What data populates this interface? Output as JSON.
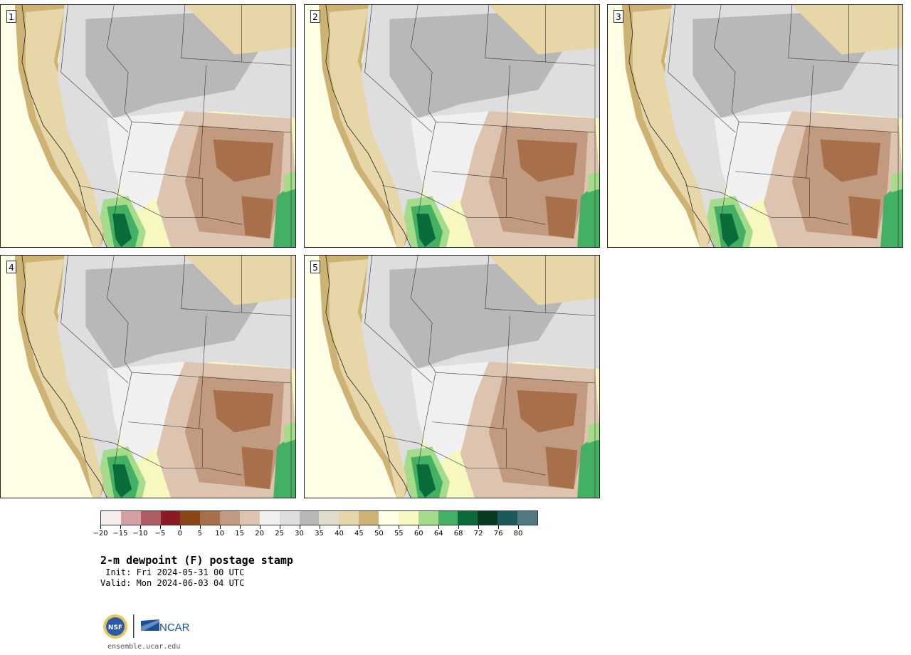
{
  "panels": [
    {
      "label": "1"
    },
    {
      "label": "2"
    },
    {
      "label": "3"
    },
    {
      "label": "4"
    },
    {
      "label": "5"
    }
  ],
  "colorbar": {
    "colors": [
      "#f5ecec",
      "#d4a0a4",
      "#b05c64",
      "#8c1a24",
      "#8a4614",
      "#a8704a",
      "#c29a80",
      "#ddc4b0",
      "#f0f0f0",
      "#dedede",
      "#b8b8b8",
      "#e0dccc",
      "#e6d6a8",
      "#cdb274",
      "#fefee6",
      "#f6f8c0",
      "#a4dc8c",
      "#44b064",
      "#0a6c38",
      "#083c20",
      "#1a5a5a",
      "#4e7a80"
    ],
    "ticks": [
      "−20",
      "−15",
      "−10",
      "−5",
      "0",
      "5",
      "10",
      "15",
      "20",
      "25",
      "30",
      "35",
      "40",
      "45",
      "50",
      "55",
      "60",
      "64",
      "68",
      "72",
      "76",
      "80"
    ]
  },
  "title": "2-m dewpoint (F) postage stamp",
  "init": " Init: Fri 2024-05-31 00 UTC",
  "valid": "Valid: Mon 2024-06-03 04 UTC",
  "logos": {
    "nsf": "NSF",
    "ncar": "NCAR"
  },
  "website": "ensemble.ucar.edu"
}
